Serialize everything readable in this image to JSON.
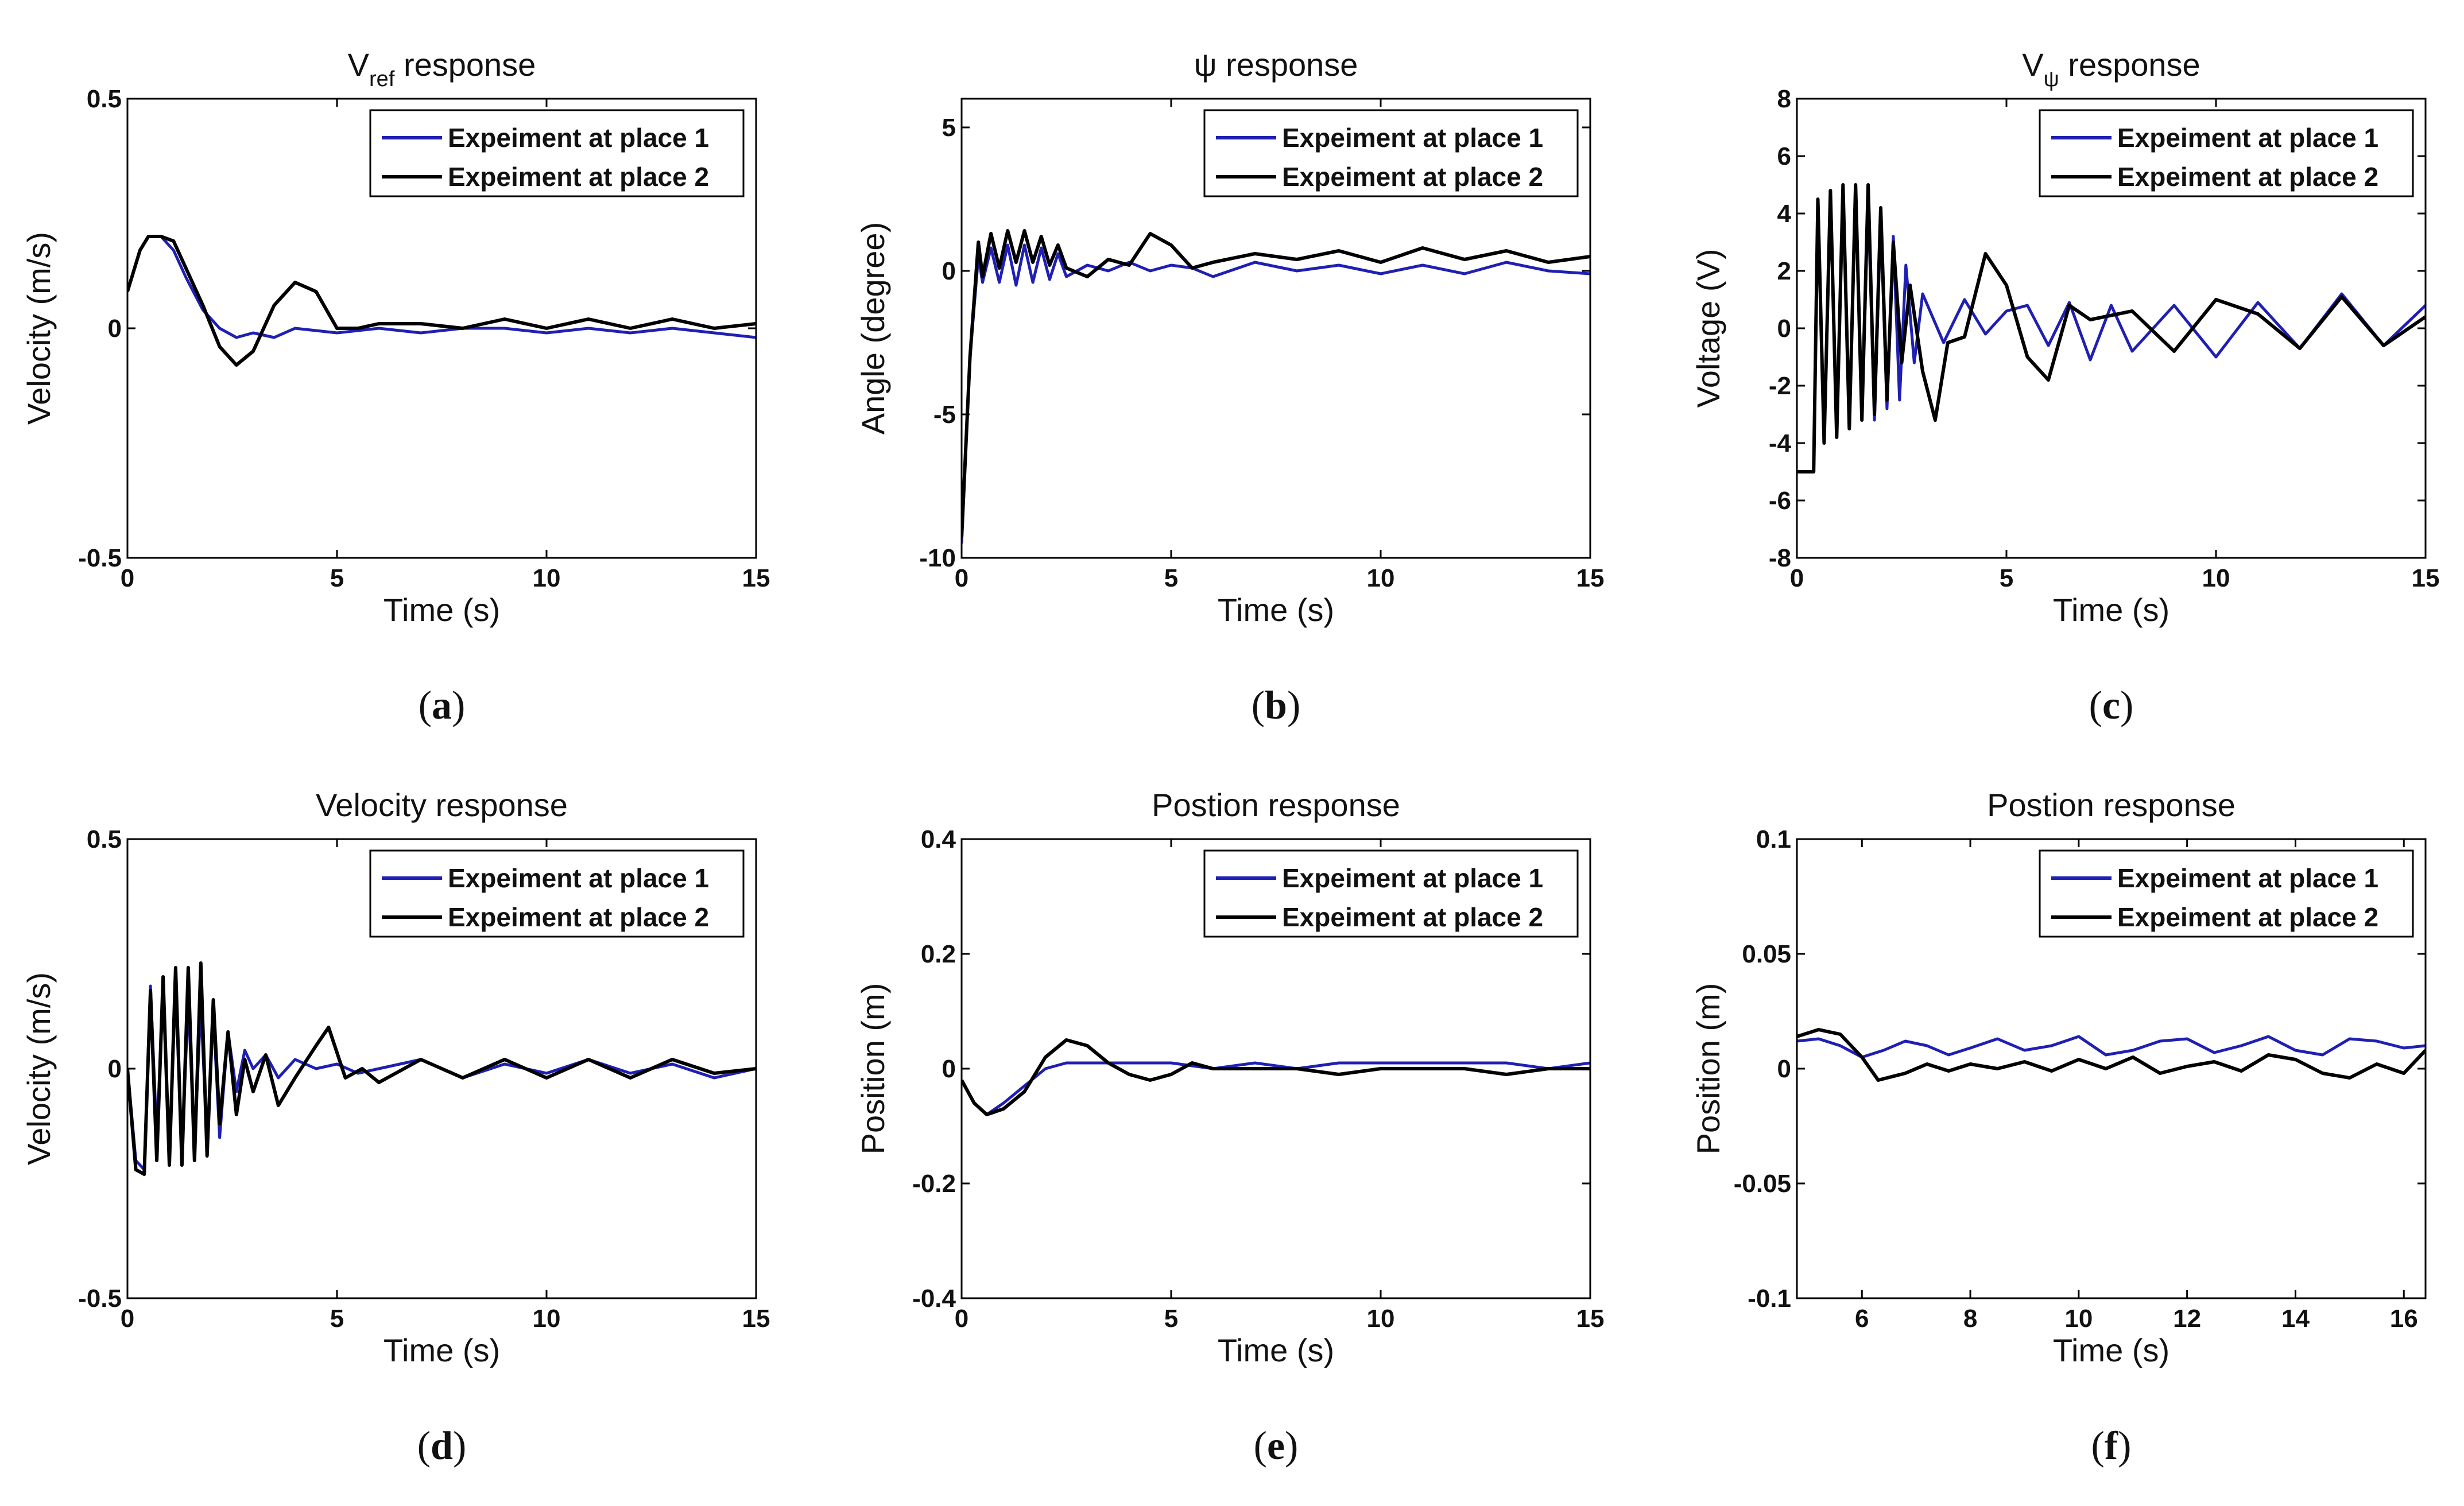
{
  "figure": {
    "panels": [
      {
        "caption": "b"
      },
      {
        "caption": "e"
      }
    ]
  },
  "chart_data": [
    {
      "id": "a",
      "type": "line",
      "caption_letter": "a",
      "title_main": "V",
      "title_sub": "ref",
      "title_rest": " response",
      "xlabel": "Time (s)",
      "ylabel": "Velocity (m/s)",
      "xlim": [
        0,
        15
      ],
      "ylim": [
        -0.5,
        0.5
      ],
      "xticks": [
        0,
        5,
        10,
        15
      ],
      "yticks": [
        -0.5,
        0,
        0.5
      ],
      "ytick_labels": [
        "-0.5",
        "0",
        "0.5"
      ],
      "legend": [
        "Expeiment at place 1",
        "Expeiment at place 2"
      ],
      "series": [
        {
          "name": "Expeiment at place 1",
          "color": "#1f1fb4",
          "x": [
            0,
            0.3,
            0.5,
            0.8,
            1.1,
            1.4,
            1.8,
            2.2,
            2.6,
            3.0,
            3.5,
            4.0,
            5.0,
            6.0,
            7.0,
            8.0,
            9.0,
            10.0,
            11.0,
            12.0,
            13.0,
            14.0,
            15.0
          ],
          "y": [
            0.08,
            0.17,
            0.2,
            0.2,
            0.17,
            0.11,
            0.04,
            0.0,
            -0.02,
            -0.01,
            -0.02,
            0.0,
            -0.01,
            0.0,
            -0.01,
            0.0,
            0.0,
            -0.01,
            0.0,
            -0.01,
            0.0,
            -0.01,
            -0.02
          ]
        },
        {
          "name": "Expeiment at place 2",
          "color": "#000000",
          "x": [
            0,
            0.3,
            0.5,
            0.8,
            1.1,
            1.4,
            1.8,
            2.2,
            2.6,
            3.0,
            3.5,
            4.0,
            4.5,
            5.0,
            5.5,
            6.0,
            7.0,
            8.0,
            9.0,
            10.0,
            11.0,
            12.0,
            13.0,
            14.0,
            15.0
          ],
          "y": [
            0.08,
            0.17,
            0.2,
            0.2,
            0.19,
            0.13,
            0.05,
            -0.04,
            -0.08,
            -0.05,
            0.05,
            0.1,
            0.08,
            0.0,
            0.0,
            0.01,
            0.01,
            0.0,
            0.02,
            0.0,
            0.02,
            0.0,
            0.02,
            0.0,
            0.01
          ]
        }
      ]
    },
    {
      "id": "b",
      "type": "line",
      "caption_letter": "b",
      "title_main": "ψ response",
      "title_sub": "",
      "title_rest": "",
      "xlabel": "Time (s)",
      "ylabel": "Angle (degree)",
      "xlim": [
        0,
        15
      ],
      "ylim": [
        -10,
        6
      ],
      "xticks": [
        0,
        5,
        10,
        15
      ],
      "yticks": [
        -10,
        -5,
        0,
        5
      ],
      "ytick_labels": [
        "-10",
        "-5",
        "0",
        "5"
      ],
      "legend": [
        "Expeiment at place 1",
        "Expeiment at place 2"
      ],
      "series": [
        {
          "name": "Expeiment at place 1",
          "color": "#1f1fb4",
          "x": [
            0,
            0.2,
            0.4,
            0.5,
            0.7,
            0.9,
            1.1,
            1.3,
            1.5,
            1.7,
            1.9,
            2.1,
            2.3,
            2.5,
            3.0,
            3.5,
            4.0,
            4.5,
            5.0,
            5.5,
            6.0,
            7.0,
            8.0,
            9.0,
            10.0,
            11.0,
            12.0,
            13.0,
            14.0,
            15.0
          ],
          "y": [
            -9.5,
            -3,
            0.5,
            -0.4,
            0.8,
            -0.4,
            0.9,
            -0.5,
            0.9,
            -0.4,
            0.8,
            -0.3,
            0.6,
            -0.2,
            0.2,
            0.0,
            0.3,
            0.0,
            0.2,
            0.1,
            -0.2,
            0.3,
            0.0,
            0.2,
            -0.1,
            0.2,
            -0.1,
            0.3,
            0.0,
            -0.1
          ]
        },
        {
          "name": "Expeiment at place 2",
          "color": "#000000",
          "x": [
            0,
            0.2,
            0.4,
            0.5,
            0.7,
            0.9,
            1.1,
            1.3,
            1.5,
            1.7,
            1.9,
            2.1,
            2.3,
            2.5,
            3.0,
            3.5,
            4.0,
            4.5,
            5.0,
            5.5,
            6.0,
            7.0,
            8.0,
            9.0,
            10.0,
            11.0,
            12.0,
            13.0,
            14.0,
            15.0
          ],
          "y": [
            -9.3,
            -3,
            1.0,
            -0.2,
            1.3,
            0.1,
            1.4,
            0.3,
            1.4,
            0.3,
            1.2,
            0.2,
            0.9,
            0.1,
            -0.2,
            0.4,
            0.2,
            1.3,
            0.9,
            0.1,
            0.3,
            0.6,
            0.4,
            0.7,
            0.3,
            0.8,
            0.4,
            0.7,
            0.3,
            0.5
          ]
        }
      ]
    },
    {
      "id": "c",
      "type": "line",
      "caption_letter": "c",
      "title_main": "V",
      "title_sub": "ψ",
      "title_rest": " response",
      "xlabel": "Time (s)",
      "ylabel": "Voltage (V)",
      "xlim": [
        0,
        15
      ],
      "ylim": [
        -8,
        8
      ],
      "xticks": [
        0,
        5,
        10,
        15
      ],
      "yticks": [
        -8,
        -6,
        -4,
        -2,
        0,
        2,
        4,
        6,
        8
      ],
      "ytick_labels": [
        "-8",
        "-6",
        "-4",
        "-2",
        "0",
        "2",
        "4",
        "6",
        "8"
      ],
      "legend": [
        "Expeiment at place 1",
        "Expeiment at place 2"
      ],
      "series": [
        {
          "name": "Expeiment at place 1",
          "color": "#1f1fb4",
          "x": [
            0,
            0.4,
            0.5,
            0.65,
            0.8,
            0.95,
            1.1,
            1.25,
            1.4,
            1.55,
            1.7,
            1.85,
            2.0,
            2.15,
            2.3,
            2.45,
            2.6,
            2.8,
            3.0,
            3.5,
            4.0,
            4.5,
            5.0,
            5.5,
            6.0,
            6.5,
            7.0,
            7.5,
            8.0,
            9.0,
            10.0,
            11.0,
            12.0,
            13.0,
            14.0,
            15.0
          ],
          "y": [
            -5,
            -5,
            4.2,
            -4,
            4.5,
            -3.5,
            4.8,
            -3.2,
            4.6,
            -3,
            4.4,
            -3.2,
            3.8,
            -2.8,
            3.2,
            -2.5,
            2.2,
            -1.2,
            1.2,
            -0.5,
            1.0,
            -0.2,
            0.6,
            0.8,
            -0.6,
            0.9,
            -1.1,
            0.8,
            -0.8,
            0.8,
            -1.0,
            0.9,
            -0.7,
            1.2,
            -0.6,
            0.8
          ]
        },
        {
          "name": "Expeiment at place 2",
          "color": "#000000",
          "x": [
            0,
            0.4,
            0.5,
            0.65,
            0.8,
            0.95,
            1.1,
            1.25,
            1.4,
            1.55,
            1.7,
            1.85,
            2.0,
            2.15,
            2.3,
            2.5,
            2.7,
            3.0,
            3.3,
            3.6,
            4.0,
            4.5,
            5.0,
            5.5,
            6.0,
            6.5,
            7.0,
            8.0,
            9.0,
            10.0,
            11.0,
            12.0,
            13.0,
            14.0,
            15.0
          ],
          "y": [
            -5,
            -5,
            4.5,
            -4,
            4.8,
            -3.8,
            5.0,
            -3.5,
            5.0,
            -3.2,
            5.0,
            -3.0,
            4.2,
            -2.5,
            3.0,
            -1.2,
            1.5,
            -1.5,
            -3.2,
            -0.5,
            -0.3,
            2.6,
            1.5,
            -1.0,
            -1.8,
            0.8,
            0.3,
            0.6,
            -0.8,
            1.0,
            0.5,
            -0.7,
            1.1,
            -0.6,
            0.4
          ]
        }
      ]
    },
    {
      "id": "d",
      "type": "line",
      "caption_letter": "d",
      "title_main": "Velocity response",
      "title_sub": "",
      "title_rest": "",
      "xlabel": "Time (s)",
      "ylabel": "Velocity (m/s)",
      "xlim": [
        0,
        15
      ],
      "ylim": [
        -0.5,
        0.5
      ],
      "xticks": [
        0,
        5,
        10,
        15
      ],
      "yticks": [
        -0.5,
        0,
        0.5
      ],
      "ytick_labels": [
        "-0.5",
        "0",
        "0.5"
      ],
      "legend": [
        "Expeiment at place 1",
        "Expeiment at place 2"
      ],
      "series": [
        {
          "name": "Expeiment at place 1",
          "color": "#1f1fb4",
          "x": [
            0,
            0.2,
            0.4,
            0.55,
            0.7,
            0.85,
            1.0,
            1.15,
            1.3,
            1.45,
            1.6,
            1.75,
            1.9,
            2.05,
            2.2,
            2.4,
            2.6,
            2.8,
            3.0,
            3.3,
            3.6,
            4.0,
            4.5,
            5.0,
            5.5,
            6.0,
            7.0,
            8.0,
            9.0,
            10.0,
            11.0,
            12.0,
            13.0,
            14.0,
            15.0
          ],
          "y": [
            0,
            -0.2,
            -0.22,
            0.18,
            -0.15,
            0.16,
            -0.17,
            0.17,
            -0.18,
            0.15,
            -0.17,
            0.14,
            -0.16,
            0.12,
            -0.15,
            0.08,
            -0.05,
            0.04,
            0.0,
            0.03,
            -0.02,
            0.02,
            0.0,
            0.01,
            -0.01,
            0.0,
            0.02,
            -0.02,
            0.01,
            -0.01,
            0.02,
            -0.01,
            0.01,
            -0.02,
            0.0
          ]
        },
        {
          "name": "Expeiment at place 2",
          "color": "#000000",
          "x": [
            0,
            0.2,
            0.4,
            0.55,
            0.7,
            0.85,
            1.0,
            1.15,
            1.3,
            1.45,
            1.6,
            1.75,
            1.9,
            2.05,
            2.2,
            2.4,
            2.6,
            2.8,
            3.0,
            3.3,
            3.6,
            4.0,
            4.5,
            4.8,
            5.2,
            5.6,
            6.0,
            7.0,
            8.0,
            9.0,
            10.0,
            11.0,
            12.0,
            13.0,
            14.0,
            15.0
          ],
          "y": [
            0,
            -0.22,
            -0.23,
            0.17,
            -0.2,
            0.2,
            -0.21,
            0.22,
            -0.21,
            0.22,
            -0.2,
            0.23,
            -0.19,
            0.15,
            -0.12,
            0.08,
            -0.1,
            0.02,
            -0.05,
            0.03,
            -0.08,
            -0.02,
            0.05,
            0.09,
            -0.02,
            0.0,
            -0.03,
            0.02,
            -0.02,
            0.02,
            -0.02,
            0.02,
            -0.02,
            0.02,
            -0.01,
            0.0
          ]
        }
      ]
    },
    {
      "id": "e",
      "type": "line",
      "caption_letter": "e",
      "title_main": "Postion response",
      "title_sub": "",
      "title_rest": "",
      "xlabel": "Time (s)",
      "ylabel": "Position (m)",
      "xlim": [
        0,
        15
      ],
      "ylim": [
        -0.4,
        0.4
      ],
      "xticks": [
        0,
        5,
        10,
        15
      ],
      "yticks": [
        -0.4,
        -0.2,
        0,
        0.2,
        0.4
      ],
      "ytick_labels": [
        "-0.4",
        "-0.2",
        "0",
        "0.2",
        "0.4"
      ],
      "legend": [
        "Expeiment at place 1",
        "Expeiment at place 2"
      ],
      "series": [
        {
          "name": "Expeiment at place 1",
          "color": "#1f1fb4",
          "x": [
            0,
            0.3,
            0.6,
            1.0,
            1.5,
            2.0,
            2.5,
            3.0,
            4.0,
            5.0,
            6.0,
            7.0,
            8.0,
            9.0,
            10.0,
            11.0,
            12.0,
            13.0,
            14.0,
            15.0
          ],
          "y": [
            -0.02,
            -0.06,
            -0.08,
            -0.06,
            -0.03,
            0.0,
            0.01,
            0.01,
            0.01,
            0.01,
            0.0,
            0.01,
            0.0,
            0.01,
            0.01,
            0.01,
            0.01,
            0.01,
            0.0,
            0.01
          ]
        },
        {
          "name": "Expeiment at place 2",
          "color": "#000000",
          "x": [
            0,
            0.3,
            0.6,
            1.0,
            1.5,
            2.0,
            2.5,
            3.0,
            3.5,
            4.0,
            4.5,
            5.0,
            5.5,
            6.0,
            7.0,
            8.0,
            9.0,
            10.0,
            11.0,
            12.0,
            13.0,
            14.0,
            15.0
          ],
          "y": [
            -0.02,
            -0.06,
            -0.08,
            -0.07,
            -0.04,
            0.02,
            0.05,
            0.04,
            0.01,
            -0.01,
            -0.02,
            -0.01,
            0.01,
            0.0,
            0.0,
            0.0,
            -0.01,
            0.0,
            0.0,
            0.0,
            -0.01,
            0.0,
            0.0
          ]
        }
      ]
    },
    {
      "id": "f",
      "type": "line",
      "caption_letter": "f",
      "title_main": "Postion response",
      "title_sub": "",
      "title_rest": "",
      "xlabel": "Time (s)",
      "ylabel": "Position (m)",
      "xlim": [
        4.8,
        16.4
      ],
      "ylim": [
        -0.1,
        0.1
      ],
      "xticks": [
        6,
        8,
        10,
        12,
        14,
        16
      ],
      "yticks": [
        -0.1,
        -0.05,
        0,
        0.05,
        0.1
      ],
      "ytick_labels": [
        "-0.1",
        "-0.05",
        "0",
        "0.05",
        "0.1"
      ],
      "legend": [
        "Expeiment at place 1",
        "Expeiment at place 2"
      ],
      "series": [
        {
          "name": "Expeiment at place 1",
          "color": "#1f1fb4",
          "x": [
            4.8,
            5.2,
            5.6,
            6.0,
            6.4,
            6.8,
            7.2,
            7.6,
            8.0,
            8.5,
            9.0,
            9.5,
            10.0,
            10.5,
            11.0,
            11.5,
            12.0,
            12.5,
            13.0,
            13.5,
            14.0,
            14.5,
            15.0,
            15.5,
            16.0,
            16.4
          ],
          "y": [
            0.012,
            0.013,
            0.01,
            0.005,
            0.008,
            0.012,
            0.01,
            0.006,
            0.009,
            0.013,
            0.008,
            0.01,
            0.014,
            0.006,
            0.008,
            0.012,
            0.013,
            0.007,
            0.01,
            0.014,
            0.008,
            0.006,
            0.013,
            0.012,
            0.009,
            0.01
          ]
        },
        {
          "name": "Expeiment at place 2",
          "color": "#000000",
          "x": [
            4.8,
            5.2,
            5.6,
            6.0,
            6.3,
            6.8,
            7.2,
            7.6,
            8.0,
            8.5,
            9.0,
            9.5,
            10.0,
            10.5,
            11.0,
            11.5,
            12.0,
            12.5,
            13.0,
            13.5,
            14.0,
            14.5,
            15.0,
            15.5,
            16.0,
            16.4
          ],
          "y": [
            0.014,
            0.017,
            0.015,
            0.005,
            -0.005,
            -0.002,
            0.002,
            -0.001,
            0.002,
            0.0,
            0.003,
            -0.001,
            0.004,
            0.0,
            0.005,
            -0.002,
            0.001,
            0.003,
            -0.001,
            0.006,
            0.004,
            -0.002,
            -0.004,
            0.002,
            -0.002,
            0.008
          ]
        }
      ]
    }
  ]
}
